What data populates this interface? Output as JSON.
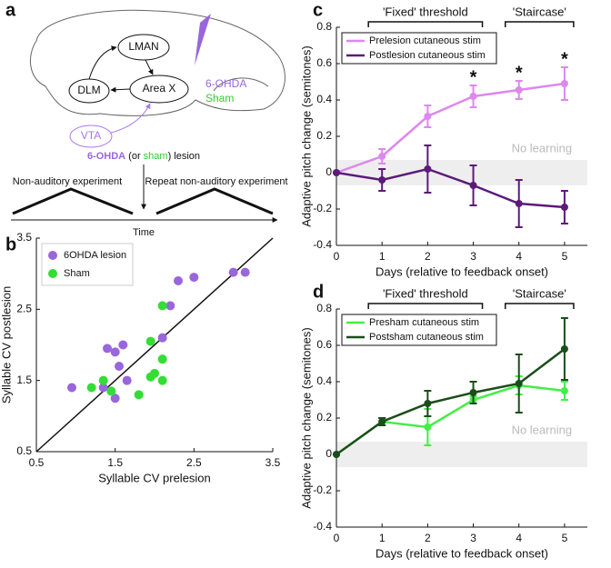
{
  "diagram": {
    "panel_label": "a",
    "nodes": [
      "LMAN",
      "Area X",
      "DLM",
      "VTA"
    ],
    "drug": "6-OHDA",
    "sham": "Sham",
    "lesion_text": [
      "6-OHDA",
      " (or ",
      "sham",
      ") lesion"
    ],
    "experiment_1": "Non-auditory experiment",
    "experiment_2": "Repeat non-auditory experiment",
    "time": "Time"
  },
  "chart_data": [
    {
      "type": "scatter",
      "panel_label": "b",
      "xlabel": "Syllable CV prelesion",
      "ylabel": "Syllable CV postlesion",
      "xlim": [
        0.5,
        3.5
      ],
      "ylim": [
        0.5,
        3.5
      ],
      "xticks": [
        0.5,
        1.5,
        2.5,
        3.5
      ],
      "yticks": [
        0.5,
        1.5,
        2.5,
        3.5
      ],
      "identity_line": true,
      "legend": "upper left",
      "series": [
        {
          "name": "6OHDA lesion",
          "color": "#9966dd",
          "x": [
            0.95,
            1.35,
            1.4,
            1.5,
            1.55,
            1.5,
            1.65,
            1.6,
            2.1,
            2.2,
            2.3,
            2.5,
            3.0,
            3.15
          ],
          "y": [
            1.4,
            1.4,
            1.95,
            1.9,
            1.7,
            1.25,
            1.5,
            2.0,
            2.1,
            2.55,
            2.9,
            2.95,
            3.02,
            3.02
          ]
        },
        {
          "name": "Sham",
          "color": "#33dd33",
          "x": [
            1.2,
            1.35,
            1.45,
            1.8,
            1.95,
            1.95,
            2.1,
            2.1,
            2.1,
            2.0
          ],
          "y": [
            1.4,
            1.5,
            1.35,
            1.3,
            1.55,
            2.05,
            1.8,
            1.5,
            2.55,
            1.6
          ]
        }
      ]
    },
    {
      "type": "line",
      "panel_label": "c",
      "xlabel": "Days (relative to feedback onset)",
      "ylabel": "Adaptive pitch change (semitones)",
      "x": [
        0,
        1,
        2,
        3,
        4,
        5
      ],
      "xlim": [
        0,
        5.5
      ],
      "ylim": [
        -0.4,
        0.8
      ],
      "xticks": [
        0,
        1,
        2,
        3,
        4,
        5
      ],
      "yticks": [
        -0.4,
        -0.2,
        0,
        0.2,
        0.4,
        0.6,
        0.8
      ],
      "legend": "upper left",
      "periods": [
        {
          "label": "'Fixed' threshold",
          "range": [
            1,
            3
          ]
        },
        {
          "label": "'Staircase'",
          "range": [
            4,
            5
          ]
        }
      ],
      "no_learning": {
        "text": "No learning",
        "range": [
          -0.07,
          0.07
        ]
      },
      "annotations": [
        {
          "text": "*",
          "x": 3
        },
        {
          "text": "*",
          "x": 4
        },
        {
          "text": "*",
          "x": 5
        }
      ],
      "series": [
        {
          "name": "Prelesion cutaneous stim",
          "color": "#dd88ee",
          "values": [
            0,
            0.09,
            0.31,
            0.42,
            0.455,
            0.49
          ],
          "errors": [
            0,
            0.04,
            0.06,
            0.06,
            0.05,
            0.09
          ]
        },
        {
          "name": "Postlesion cutaneous stim",
          "color": "#5c1a7a",
          "values": [
            0,
            -0.04,
            0.02,
            -0.07,
            -0.17,
            -0.19
          ],
          "errors": [
            0,
            0.06,
            0.13,
            0.11,
            0.13,
            0.09
          ]
        }
      ]
    },
    {
      "type": "line",
      "panel_label": "d",
      "xlabel": "Days (relative to feedback onset)",
      "ylabel": "Adaptive pitch change (semitones)",
      "x": [
        0,
        1,
        2,
        3,
        4,
        5
      ],
      "xlim": [
        0,
        5.5
      ],
      "ylim": [
        -0.4,
        0.8
      ],
      "xticks": [
        0,
        1,
        2,
        3,
        4,
        5
      ],
      "yticks": [
        -0.4,
        -0.2,
        0,
        0.2,
        0.4,
        0.6,
        0.8
      ],
      "legend": "upper left",
      "periods": [
        {
          "label": "'Fixed' threshold",
          "range": [
            1,
            3
          ]
        },
        {
          "label": "'Staircase'",
          "range": [
            4,
            5
          ]
        }
      ],
      "no_learning": {
        "text": "No learning",
        "range": [
          -0.07,
          0.07
        ]
      },
      "series": [
        {
          "name": "Presham cutaneous stim",
          "color": "#44ee44",
          "values": [
            0,
            0.18,
            0.15,
            0.3,
            0.38,
            0.35
          ],
          "errors": [
            0,
            0.02,
            0.1,
            0.02,
            0.05,
            0.05
          ]
        },
        {
          "name": "Postsham cutaneous stim",
          "color": "#1a4d1a",
          "values": [
            0,
            0.18,
            0.28,
            0.34,
            0.39,
            0.58
          ],
          "errors": [
            0,
            0.02,
            0.07,
            0.06,
            0.16,
            0.17
          ]
        }
      ]
    }
  ]
}
